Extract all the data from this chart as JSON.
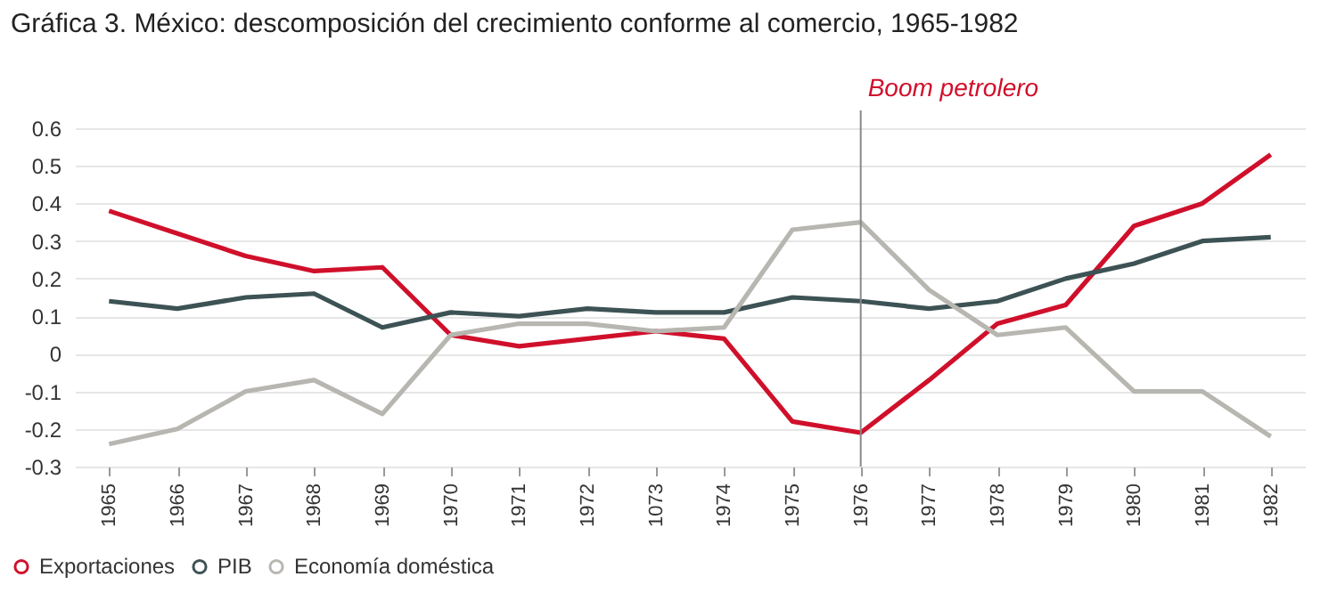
{
  "chart_data": {
    "type": "line",
    "title": "Gráfica 3. México: descomposición del crecimiento conforme al comercio, 1965-1982",
    "categories": [
      "1965",
      "1966",
      "1967",
      "1968",
      "1969",
      "1970",
      "1971",
      "1972",
      "1073",
      "1974",
      "1975",
      "1976",
      "1977",
      "1978",
      "1979",
      "1980",
      "1981",
      "1982"
    ],
    "series": [
      {
        "name": "Exportaciones",
        "color": "#d0102b",
        "values": [
          0.38,
          0.32,
          0.26,
          0.22,
          0.23,
          0.05,
          0.02,
          0.04,
          0.06,
          0.04,
          -0.18,
          -0.21,
          -0.07,
          0.08,
          0.13,
          0.34,
          0.4,
          0.53
        ]
      },
      {
        "name": "PIB",
        "color": "#3d5254",
        "values": [
          0.14,
          0.12,
          0.15,
          0.16,
          0.07,
          0.11,
          0.1,
          0.12,
          0.11,
          0.11,
          0.15,
          0.14,
          0.12,
          0.14,
          0.2,
          0.24,
          0.3,
          0.31
        ]
      },
      {
        "name": "Economía doméstica",
        "color": "#b8b6b0",
        "values": [
          -0.24,
          -0.2,
          -0.1,
          -0.07,
          -0.16,
          0.05,
          0.08,
          0.08,
          0.06,
          0.07,
          0.33,
          0.35,
          0.17,
          0.05,
          0.07,
          -0.1,
          -0.1,
          -0.22
        ]
      }
    ],
    "ylim": [
      -0.3,
      0.6
    ],
    "yticks": [
      -0.3,
      -0.2,
      -0.1,
      0,
      0.1,
      0.2,
      0.3,
      0.4,
      0.5,
      0.6
    ],
    "ref_lines": [
      {
        "axis": "x",
        "value": "1976",
        "label": "Boom petrolero",
        "color": "#888888"
      }
    ],
    "grid": "y",
    "legend": "bottom left",
    "marker": "none",
    "line_style": "solid"
  }
}
